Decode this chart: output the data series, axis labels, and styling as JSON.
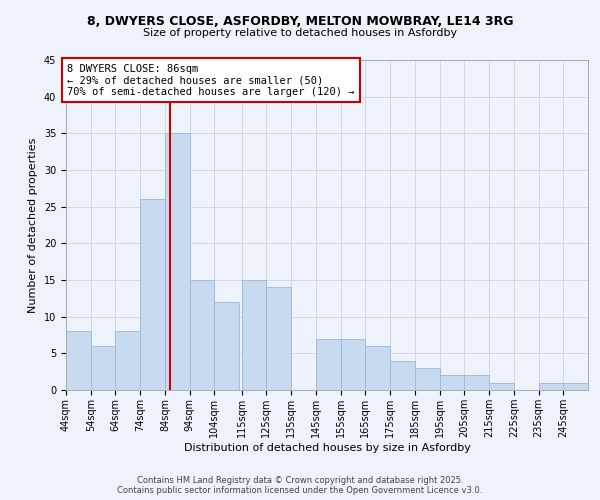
{
  "title_line1": "8, DWYERS CLOSE, ASFORDBY, MELTON MOWBRAY, LE14 3RG",
  "title_line2": "Size of property relative to detached houses in Asfordby",
  "xlabel": "Distribution of detached houses by size in Asfordby",
  "ylabel": "Number of detached properties",
  "bin_starts": [
    44,
    54,
    64,
    74,
    84,
    94,
    104,
    115,
    125,
    135,
    145,
    155,
    165,
    175,
    185,
    195,
    205,
    215,
    225,
    235,
    245
  ],
  "bin_width": 10,
  "counts": [
    8,
    6,
    8,
    26,
    35,
    15,
    12,
    15,
    14,
    0,
    7,
    7,
    6,
    4,
    3,
    2,
    2,
    1,
    0,
    1,
    1
  ],
  "bar_color": "#c8daf0",
  "bar_edge_color": "#9ab8d8",
  "grid_color": "#d0d8e8",
  "bg_color": "#eef2fa",
  "vline_x": 86,
  "vline_color": "#cc0000",
  "annotation_text": "8 DWYERS CLOSE: 86sqm\n← 29% of detached houses are smaller (50)\n70% of semi-detached houses are larger (120) →",
  "annotation_box_color": "#ffffff",
  "annotation_border_color": "#cc0000",
  "ylim": [
    0,
    45
  ],
  "yticks": [
    0,
    5,
    10,
    15,
    20,
    25,
    30,
    35,
    40,
    45
  ],
  "tick_labels": [
    "44sqm",
    "54sqm",
    "64sqm",
    "74sqm",
    "84sqm",
    "94sqm",
    "104sqm",
    "115sqm",
    "125sqm",
    "135sqm",
    "145sqm",
    "155sqm",
    "165sqm",
    "175sqm",
    "185sqm",
    "195sqm",
    "205sqm",
    "215sqm",
    "225sqm",
    "235sqm",
    "245sqm"
  ],
  "footer_line1": "Contains HM Land Registry data © Crown copyright and database right 2025.",
  "footer_line2": "Contains public sector information licensed under the Open Government Licence v3.0.",
  "title_fontsize": 9,
  "subtitle_fontsize": 8,
  "axis_label_fontsize": 8,
  "tick_fontsize": 7,
  "annotation_fontsize": 7.5,
  "footer_fontsize": 6
}
